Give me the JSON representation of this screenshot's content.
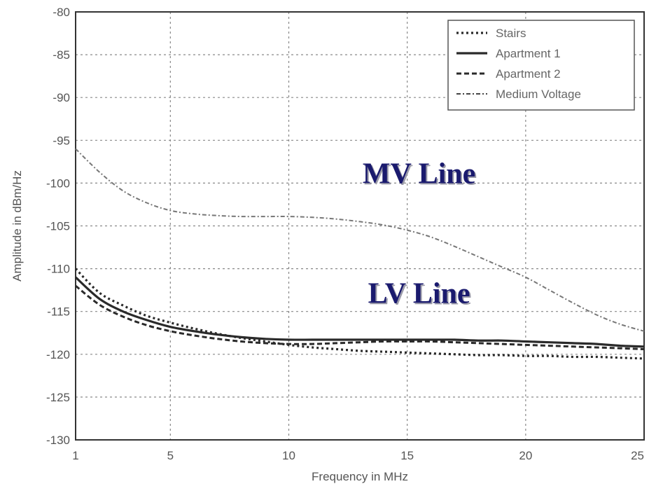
{
  "chart_data": {
    "type": "line",
    "title": "",
    "xlabel": "Frequency in MHz",
    "ylabel": "Amplitude in dBm/Hz",
    "xlim": [
      1,
      25
    ],
    "ylim": [
      -130,
      -80
    ],
    "xticks": [
      1,
      5,
      10,
      15,
      20,
      25
    ],
    "yticks": [
      -80,
      -85,
      -90,
      -95,
      -100,
      -105,
      -110,
      -115,
      -120,
      -125,
      -130
    ],
    "grid": true,
    "legend_position": "top-right",
    "series": [
      {
        "name": "Stairs",
        "style": "dotted",
        "width": 3.2,
        "color": "#2a2a2a",
        "x": [
          1,
          2,
          3,
          4,
          5,
          6,
          7,
          8,
          9,
          10,
          11,
          12,
          13,
          14,
          15,
          16,
          17,
          18,
          19,
          20,
          21,
          22,
          23,
          24,
          25
        ],
        "y": [
          -110.0,
          -112.8,
          -114.3,
          -115.5,
          -116.3,
          -117.0,
          -117.6,
          -118.1,
          -118.5,
          -118.9,
          -119.2,
          -119.4,
          -119.6,
          -119.7,
          -119.8,
          -119.9,
          -120.0,
          -120.1,
          -120.1,
          -120.2,
          -120.2,
          -120.3,
          -120.3,
          -120.4,
          -120.5
        ]
      },
      {
        "name": "Apartment 1",
        "style": "solid",
        "width": 3.2,
        "color": "#2a2a2a",
        "x": [
          1,
          2,
          3,
          4,
          5,
          6,
          7,
          8,
          9,
          10,
          11,
          12,
          13,
          14,
          15,
          16,
          17,
          18,
          19,
          20,
          21,
          22,
          23,
          24,
          25
        ],
        "y": [
          -111.0,
          -113.5,
          -115.0,
          -116.0,
          -116.8,
          -117.3,
          -117.7,
          -118.0,
          -118.2,
          -118.3,
          -118.3,
          -118.3,
          -118.3,
          -118.3,
          -118.3,
          -118.3,
          -118.3,
          -118.4,
          -118.4,
          -118.5,
          -118.6,
          -118.7,
          -118.8,
          -119.0,
          -119.1
        ]
      },
      {
        "name": "Apartment 2",
        "style": "dashed",
        "width": 3.0,
        "color": "#2a2a2a",
        "x": [
          1,
          2,
          3,
          4,
          5,
          6,
          7,
          8,
          9,
          10,
          11,
          12,
          13,
          14,
          15,
          16,
          17,
          18,
          19,
          20,
          21,
          22,
          23,
          24,
          25
        ],
        "y": [
          -112.0,
          -114.2,
          -115.6,
          -116.6,
          -117.3,
          -117.8,
          -118.2,
          -118.5,
          -118.7,
          -118.8,
          -118.8,
          -118.7,
          -118.6,
          -118.5,
          -118.5,
          -118.5,
          -118.6,
          -118.7,
          -118.8,
          -118.9,
          -119.0,
          -119.1,
          -119.2,
          -119.3,
          -119.4
        ]
      },
      {
        "name": "Medium Voltage",
        "style": "dashdot",
        "width": 2.0,
        "color": "#777777",
        "x": [
          1,
          2,
          3,
          4,
          5,
          6,
          7,
          8,
          9,
          10,
          11,
          12,
          13,
          14,
          15,
          16,
          17,
          18,
          19,
          20,
          21,
          22,
          23,
          24,
          25
        ],
        "y": [
          -96.0,
          -98.7,
          -100.9,
          -102.3,
          -103.2,
          -103.6,
          -103.8,
          -103.9,
          -103.9,
          -103.9,
          -104.0,
          -104.2,
          -104.5,
          -104.9,
          -105.5,
          -106.3,
          -107.4,
          -108.6,
          -109.8,
          -111.0,
          -112.5,
          -114.0,
          -115.4,
          -116.5,
          -117.3
        ]
      }
    ],
    "annotations": [
      {
        "text": "MV Line",
        "x": 15.5,
        "y": -100
      },
      {
        "text": "LV Line",
        "x": 15.5,
        "y": -114
      }
    ]
  }
}
